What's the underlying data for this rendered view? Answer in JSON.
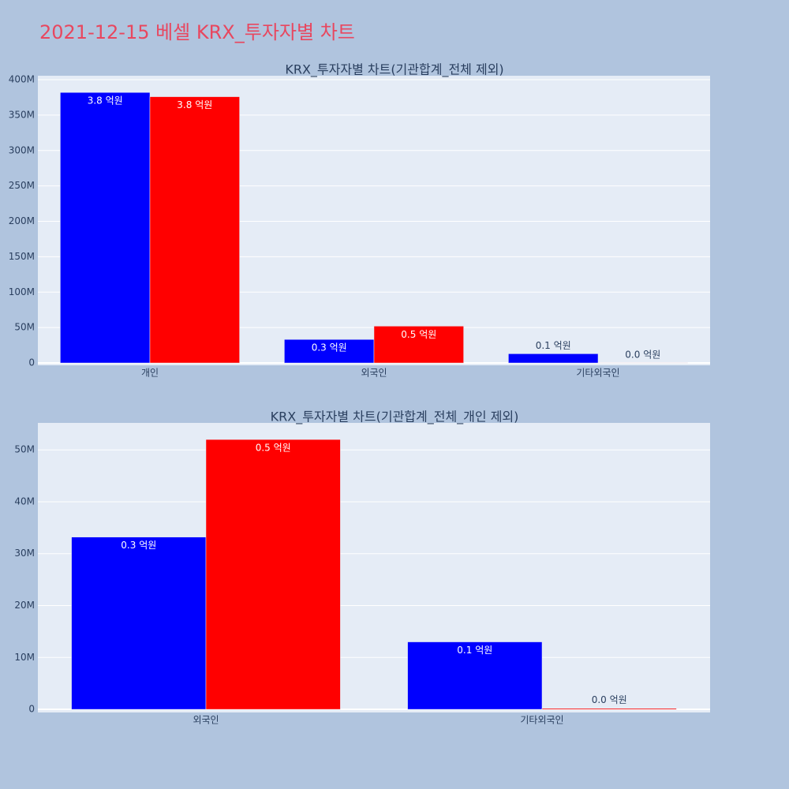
{
  "title": "2021-12-15 베셀 KRX_투자자별 차트",
  "chart_data": [
    {
      "type": "bar",
      "title": "KRX_투자자별 차트(기관합계_전체 제외)",
      "categories": [
        "개인",
        "외국인",
        "기타외국인"
      ],
      "series": [
        {
          "color": "#0000ff",
          "values": [
            382000000,
            33200000,
            13000000
          ],
          "value_labels": [
            "3.8 억원",
            "0.3 억원",
            "0.1 억원"
          ]
        },
        {
          "color": "#ff0000",
          "values": [
            376000000,
            52000000,
            200000
          ],
          "value_labels": [
            "3.8 억원",
            "0.5 억원",
            "0.0 억원"
          ]
        }
      ],
      "ylim": [
        -3300000,
        405600000
      ],
      "yticks": [
        0,
        {
          "value": 50000000,
          "label": "50M"
        },
        {
          "value": 100000000,
          "label": "100M"
        },
        {
          "value": 150000000,
          "label": "150M"
        },
        {
          "value": 200000000,
          "label": "200M"
        },
        {
          "value": 250000000,
          "label": "250M"
        },
        {
          "value": 300000000,
          "label": "300M"
        },
        {
          "value": 350000000,
          "label": "350M"
        },
        {
          "value": 400000000,
          "label": "400M"
        }
      ],
      "grid": true
    },
    {
      "type": "bar",
      "title": "KRX_투자자별 차트(기관합계_전체_개인 제외)",
      "categories": [
        "외국인",
        "기타외국인"
      ],
      "series": [
        {
          "color": "#0000ff",
          "values": [
            33200000,
            13000000
          ],
          "value_labels": [
            "0.3 억원",
            "0.1 억원"
          ]
        },
        {
          "color": "#ff0000",
          "values": [
            52000000,
            200000
          ],
          "value_labels": [
            "0.5 억원",
            "0.0 억원"
          ]
        }
      ],
      "ylim": [
        -600000,
        55200000
      ],
      "yticks": [
        0,
        {
          "value": 10000000,
          "label": "10M"
        },
        {
          "value": 20000000,
          "label": "20M"
        },
        {
          "value": 30000000,
          "label": "30M"
        },
        {
          "value": 40000000,
          "label": "40M"
        },
        {
          "value": 50000000,
          "label": "50M"
        }
      ],
      "grid": true
    }
  ]
}
